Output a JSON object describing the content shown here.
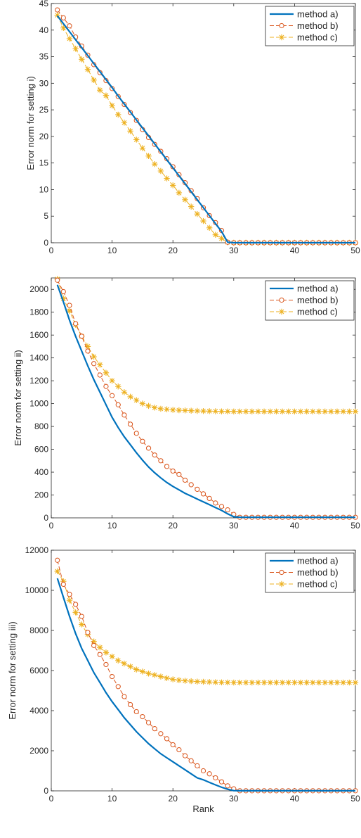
{
  "chart_data": [
    {
      "type": "line",
      "title": "",
      "xlabel": "",
      "ylabel": "Error norm for setting i)",
      "xlim": [
        0,
        50
      ],
      "ylim": [
        0,
        45
      ],
      "xticks": [
        0,
        10,
        20,
        30,
        40,
        50
      ],
      "yticks": [
        0,
        5,
        10,
        15,
        20,
        25,
        30,
        35,
        40,
        45
      ],
      "legend_position": "top-right",
      "series": [
        {
          "name": "method a)",
          "color": "#0072BD",
          "marker": "none",
          "x": [
            1,
            2,
            3,
            4,
            5,
            6,
            7,
            8,
            9,
            10,
            11,
            12,
            13,
            14,
            15,
            16,
            17,
            18,
            19,
            20,
            21,
            22,
            23,
            24,
            25,
            26,
            27,
            28,
            29,
            30,
            31,
            32,
            33,
            34,
            35,
            36,
            37,
            38,
            39,
            40,
            41,
            42,
            43,
            44,
            45,
            46,
            47,
            48,
            49,
            50
          ],
          "y": [
            42.7,
            41.2,
            39.7,
            38.2,
            36.7,
            35.2,
            33.7,
            32.2,
            30.7,
            29.2,
            27.6,
            26.1,
            24.6,
            23.1,
            21.6,
            20.1,
            18.6,
            17.1,
            15.6,
            14.1,
            12.6,
            11.1,
            9.6,
            8.1,
            6.6,
            5.1,
            3.6,
            2.1,
            0.1,
            0,
            0,
            0,
            0,
            0,
            0,
            0,
            0,
            0,
            0,
            0,
            0,
            0,
            0,
            0,
            0,
            0,
            0,
            0,
            0,
            0
          ]
        },
        {
          "name": "method b)",
          "color": "#D95319",
          "marker": "circle",
          "x": [
            1,
            2,
            3,
            4,
            5,
            6,
            7,
            8,
            9,
            10,
            11,
            12,
            13,
            14,
            15,
            16,
            17,
            18,
            19,
            20,
            21,
            22,
            23,
            24,
            25,
            26,
            27,
            28,
            29,
            30,
            31,
            32,
            33,
            34,
            35,
            36,
            37,
            38,
            39,
            40,
            41,
            42,
            43,
            44,
            45,
            46,
            47,
            48,
            49,
            50
          ],
          "y": [
            43.8,
            42.3,
            40.8,
            38.7,
            37.0,
            35.3,
            33.5,
            32.0,
            30.5,
            29.0,
            27.5,
            26.0,
            24.5,
            23.0,
            21.3,
            19.8,
            18.5,
            17.2,
            15.8,
            14.3,
            12.8,
            11.3,
            9.8,
            8.3,
            6.6,
            5.1,
            3.8,
            2.3,
            0.1,
            0,
            0,
            0,
            0,
            0,
            0,
            0,
            0,
            0,
            0,
            0,
            0,
            0,
            0,
            0,
            0,
            0,
            0,
            0,
            0,
            0
          ]
        },
        {
          "name": "method c)",
          "color": "#EDB120",
          "marker": "asterisk",
          "x": [
            1,
            2,
            3,
            4,
            5,
            6,
            7,
            8,
            9,
            10,
            11,
            12,
            13,
            14,
            15,
            16,
            17,
            18,
            19,
            20,
            21,
            22,
            23,
            24,
            25,
            26,
            27,
            28,
            29,
            30,
            31,
            32,
            33,
            34,
            35,
            36,
            37,
            38,
            39,
            40,
            41,
            42,
            43,
            44,
            45,
            46,
            47,
            48,
            49,
            50
          ],
          "y": [
            42.8,
            40.4,
            38.4,
            36.5,
            34.5,
            32.6,
            30.6,
            28.7,
            27.7,
            25.8,
            24.1,
            22.6,
            21.0,
            19.4,
            17.8,
            16.3,
            14.8,
            13.5,
            12.1,
            10.8,
            9.4,
            8.1,
            6.8,
            5.4,
            4.1,
            2.8,
            1.5,
            0.8,
            0.1,
            0,
            0,
            0,
            0,
            0,
            0,
            0,
            0,
            0,
            0,
            0,
            0,
            0,
            0,
            0,
            0,
            0,
            0,
            0,
            0,
            0
          ]
        }
      ]
    },
    {
      "type": "line",
      "title": "",
      "xlabel": "",
      "ylabel": "Error norm for setting ii)",
      "xlim": [
        0,
        50
      ],
      "ylim": [
        0,
        2100
      ],
      "xticks": [
        0,
        10,
        20,
        30,
        40,
        50
      ],
      "yticks": [
        0,
        200,
        400,
        600,
        800,
        1000,
        1200,
        1400,
        1600,
        1800,
        2000
      ],
      "legend_position": "top-right",
      "series": [
        {
          "name": "method a)",
          "color": "#0072BD",
          "marker": "none",
          "x": [
            1,
            2,
            3,
            4,
            5,
            6,
            7,
            8,
            9,
            10,
            11,
            12,
            13,
            14,
            15,
            16,
            17,
            18,
            19,
            20,
            21,
            22,
            23,
            24,
            25,
            26,
            27,
            28,
            29,
            30,
            31,
            32,
            33,
            34,
            35,
            36,
            37,
            38,
            39,
            40,
            41,
            42,
            43,
            44,
            45,
            46,
            47,
            48,
            49,
            50
          ],
          "y": [
            2040,
            1890,
            1730,
            1590,
            1460,
            1330,
            1210,
            1100,
            990,
            880,
            790,
            710,
            640,
            570,
            505,
            445,
            395,
            350,
            310,
            275,
            245,
            215,
            190,
            165,
            140,
            115,
            90,
            65,
            35,
            10,
            5,
            5,
            5,
            5,
            5,
            5,
            5,
            5,
            5,
            5,
            5,
            5,
            5,
            5,
            5,
            5,
            5,
            5,
            5,
            5
          ]
        },
        {
          "name": "method b)",
          "color": "#D95319",
          "marker": "circle",
          "x": [
            1,
            2,
            3,
            4,
            5,
            6,
            7,
            8,
            9,
            10,
            11,
            12,
            13,
            14,
            15,
            16,
            17,
            18,
            19,
            20,
            21,
            22,
            23,
            24,
            25,
            26,
            27,
            28,
            29,
            30,
            31,
            32,
            33,
            34,
            35,
            36,
            37,
            38,
            39,
            40,
            41,
            42,
            43,
            44,
            45,
            46,
            47,
            48,
            49,
            50
          ],
          "y": [
            2080,
            1980,
            1860,
            1700,
            1590,
            1460,
            1350,
            1250,
            1150,
            1070,
            990,
            900,
            820,
            740,
            670,
            610,
            550,
            500,
            450,
            410,
            380,
            330,
            290,
            250,
            210,
            170,
            130,
            100,
            70,
            30,
            5,
            5,
            5,
            5,
            5,
            5,
            5,
            5,
            5,
            5,
            5,
            5,
            5,
            5,
            5,
            5,
            5,
            5,
            5,
            5
          ]
        },
        {
          "name": "method c)",
          "color": "#EDB120",
          "marker": "asterisk",
          "x": [
            1,
            2,
            3,
            4,
            5,
            6,
            7,
            8,
            9,
            10,
            11,
            12,
            13,
            14,
            15,
            16,
            17,
            18,
            19,
            20,
            21,
            22,
            23,
            24,
            25,
            26,
            27,
            28,
            29,
            30,
            31,
            32,
            33,
            34,
            35,
            36,
            37,
            38,
            39,
            40,
            41,
            42,
            43,
            44,
            45,
            46,
            47,
            48,
            49,
            50
          ],
          "y": [
            2090,
            1920,
            1810,
            1690,
            1590,
            1500,
            1410,
            1340,
            1270,
            1200,
            1150,
            1100,
            1060,
            1030,
            1000,
            980,
            965,
            955,
            950,
            945,
            942,
            940,
            938,
            936,
            935,
            934,
            933,
            932,
            932,
            931,
            931,
            931,
            931,
            931,
            931,
            931,
            931,
            931,
            931,
            931,
            931,
            931,
            931,
            931,
            931,
            931,
            931,
            931,
            931,
            931
          ]
        }
      ]
    },
    {
      "type": "line",
      "title": "",
      "xlabel": "Rank",
      "ylabel": "Error norm for setting iii)",
      "xlim": [
        0,
        50
      ],
      "ylim": [
        0,
        12000
      ],
      "xticks": [
        0,
        10,
        20,
        30,
        40,
        50
      ],
      "yticks": [
        0,
        2000,
        4000,
        6000,
        8000,
        10000,
        12000
      ],
      "legend_position": "top-right",
      "series": [
        {
          "name": "method a)",
          "color": "#0072BD",
          "marker": "none",
          "x": [
            1,
            2,
            3,
            4,
            5,
            6,
            7,
            8,
            9,
            10,
            11,
            12,
            13,
            14,
            15,
            16,
            17,
            18,
            19,
            20,
            21,
            22,
            23,
            24,
            25,
            26,
            27,
            28,
            29,
            30,
            31,
            32,
            33,
            34,
            35,
            36,
            37,
            38,
            39,
            40,
            41,
            42,
            43,
            44,
            45,
            46,
            47,
            48,
            49,
            50
          ],
          "y": [
            10600,
            9650,
            8700,
            7850,
            7100,
            6500,
            5900,
            5400,
            4900,
            4450,
            4050,
            3650,
            3300,
            2950,
            2650,
            2350,
            2100,
            1850,
            1650,
            1450,
            1250,
            1050,
            850,
            650,
            550,
            420,
            300,
            180,
            80,
            10,
            5,
            5,
            5,
            5,
            5,
            5,
            5,
            5,
            5,
            5,
            5,
            5,
            5,
            5,
            5,
            5,
            5,
            5,
            5,
            5
          ]
        },
        {
          "name": "method b)",
          "color": "#D95319",
          "marker": "circle",
          "x": [
            1,
            2,
            3,
            4,
            5,
            6,
            7,
            8,
            9,
            10,
            11,
            12,
            13,
            14,
            15,
            16,
            17,
            18,
            19,
            20,
            21,
            22,
            23,
            24,
            25,
            26,
            27,
            28,
            29,
            30,
            31,
            32,
            33,
            34,
            35,
            36,
            37,
            38,
            39,
            40,
            41,
            42,
            43,
            44,
            45,
            46,
            47,
            48,
            49,
            50
          ],
          "y": [
            11500,
            10300,
            9800,
            9300,
            8700,
            7900,
            7250,
            6800,
            6300,
            5700,
            5200,
            4700,
            4300,
            3950,
            3700,
            3400,
            3100,
            2850,
            2600,
            2300,
            2050,
            1750,
            1500,
            1250,
            1000,
            850,
            650,
            450,
            250,
            100,
            5,
            5,
            5,
            5,
            5,
            5,
            5,
            5,
            5,
            5,
            5,
            5,
            5,
            5,
            5,
            5,
            5,
            5,
            5,
            5
          ]
        },
        {
          "name": "method c)",
          "color": "#EDB120",
          "marker": "asterisk",
          "x": [
            1,
            2,
            3,
            4,
            5,
            6,
            7,
            8,
            9,
            10,
            11,
            12,
            13,
            14,
            15,
            16,
            17,
            18,
            19,
            20,
            21,
            22,
            23,
            24,
            25,
            26,
            27,
            28,
            29,
            30,
            31,
            32,
            33,
            34,
            35,
            36,
            37,
            38,
            39,
            40,
            41,
            42,
            43,
            44,
            45,
            46,
            47,
            48,
            49,
            50
          ],
          "y": [
            10950,
            10450,
            9500,
            8900,
            8300,
            7800,
            7450,
            7150,
            6900,
            6700,
            6500,
            6350,
            6200,
            6050,
            5950,
            5850,
            5780,
            5700,
            5620,
            5560,
            5520,
            5490,
            5470,
            5450,
            5440,
            5430,
            5420,
            5410,
            5405,
            5400,
            5400,
            5400,
            5400,
            5400,
            5400,
            5400,
            5400,
            5400,
            5400,
            5400,
            5400,
            5400,
            5400,
            5400,
            5400,
            5400,
            5400,
            5400,
            5400,
            5400
          ]
        }
      ]
    }
  ]
}
